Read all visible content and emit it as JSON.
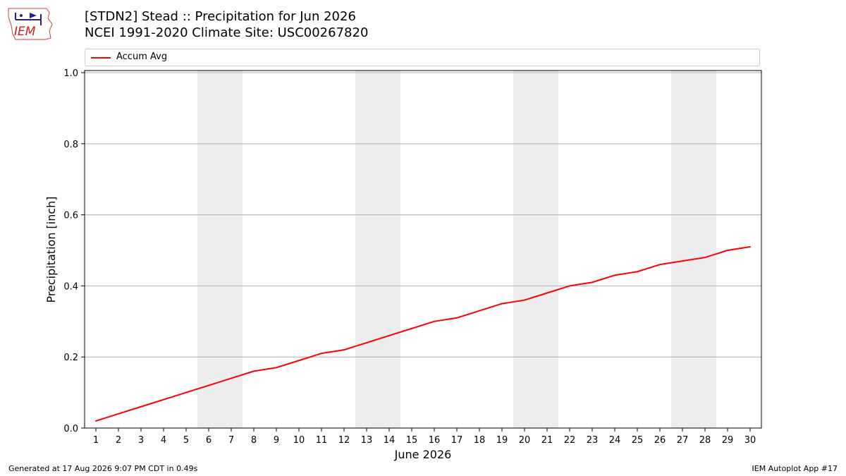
{
  "header": {
    "title_line1": "[STDN2] Stead :: Precipitation for Jun 2026",
    "title_line2": "NCEI 1991-2020 Climate Site: USC00267820",
    "logo_text": "IEM"
  },
  "footer": {
    "generated": "Generated at 17 Aug 2026 9:07 PM CDT in 0.49s",
    "app": "IEM Autoplot App #17"
  },
  "colors": {
    "line": "#ff0000",
    "weekend_band": "#eeeeee",
    "grid": "#b0b0b0"
  },
  "chart_data": {
    "type": "line",
    "title": "[STDN2] Stead :: Precipitation for Jun 2026",
    "subtitle": "NCEI 1991-2020 Climate Site: USC00267820",
    "xlabel": "June 2026",
    "ylabel": "Precipitation [inch]",
    "ylim": [
      0,
      1.0
    ],
    "yticks": [
      "0.0",
      "0.2",
      "0.4",
      "0.6",
      "0.8",
      "1.0"
    ],
    "grid": "horizontal",
    "legend_position": "top",
    "x": [
      1,
      2,
      3,
      4,
      5,
      6,
      7,
      8,
      9,
      10,
      11,
      12,
      13,
      14,
      15,
      16,
      17,
      18,
      19,
      20,
      21,
      22,
      23,
      24,
      25,
      26,
      27,
      28,
      29,
      30
    ],
    "weekend_days": [
      [
        6,
        7
      ],
      [
        13,
        14
      ],
      [
        20,
        21
      ],
      [
        27,
        28
      ]
    ],
    "series": [
      {
        "name": "Accum Avg",
        "color": "#ff0000",
        "values": [
          0.02,
          0.04,
          0.06,
          0.08,
          0.1,
          0.12,
          0.14,
          0.16,
          0.17,
          0.19,
          0.21,
          0.22,
          0.24,
          0.26,
          0.28,
          0.3,
          0.31,
          0.33,
          0.35,
          0.36,
          0.38,
          0.4,
          0.41,
          0.43,
          0.44,
          0.46,
          0.47,
          0.48,
          0.5,
          0.51
        ]
      }
    ]
  }
}
